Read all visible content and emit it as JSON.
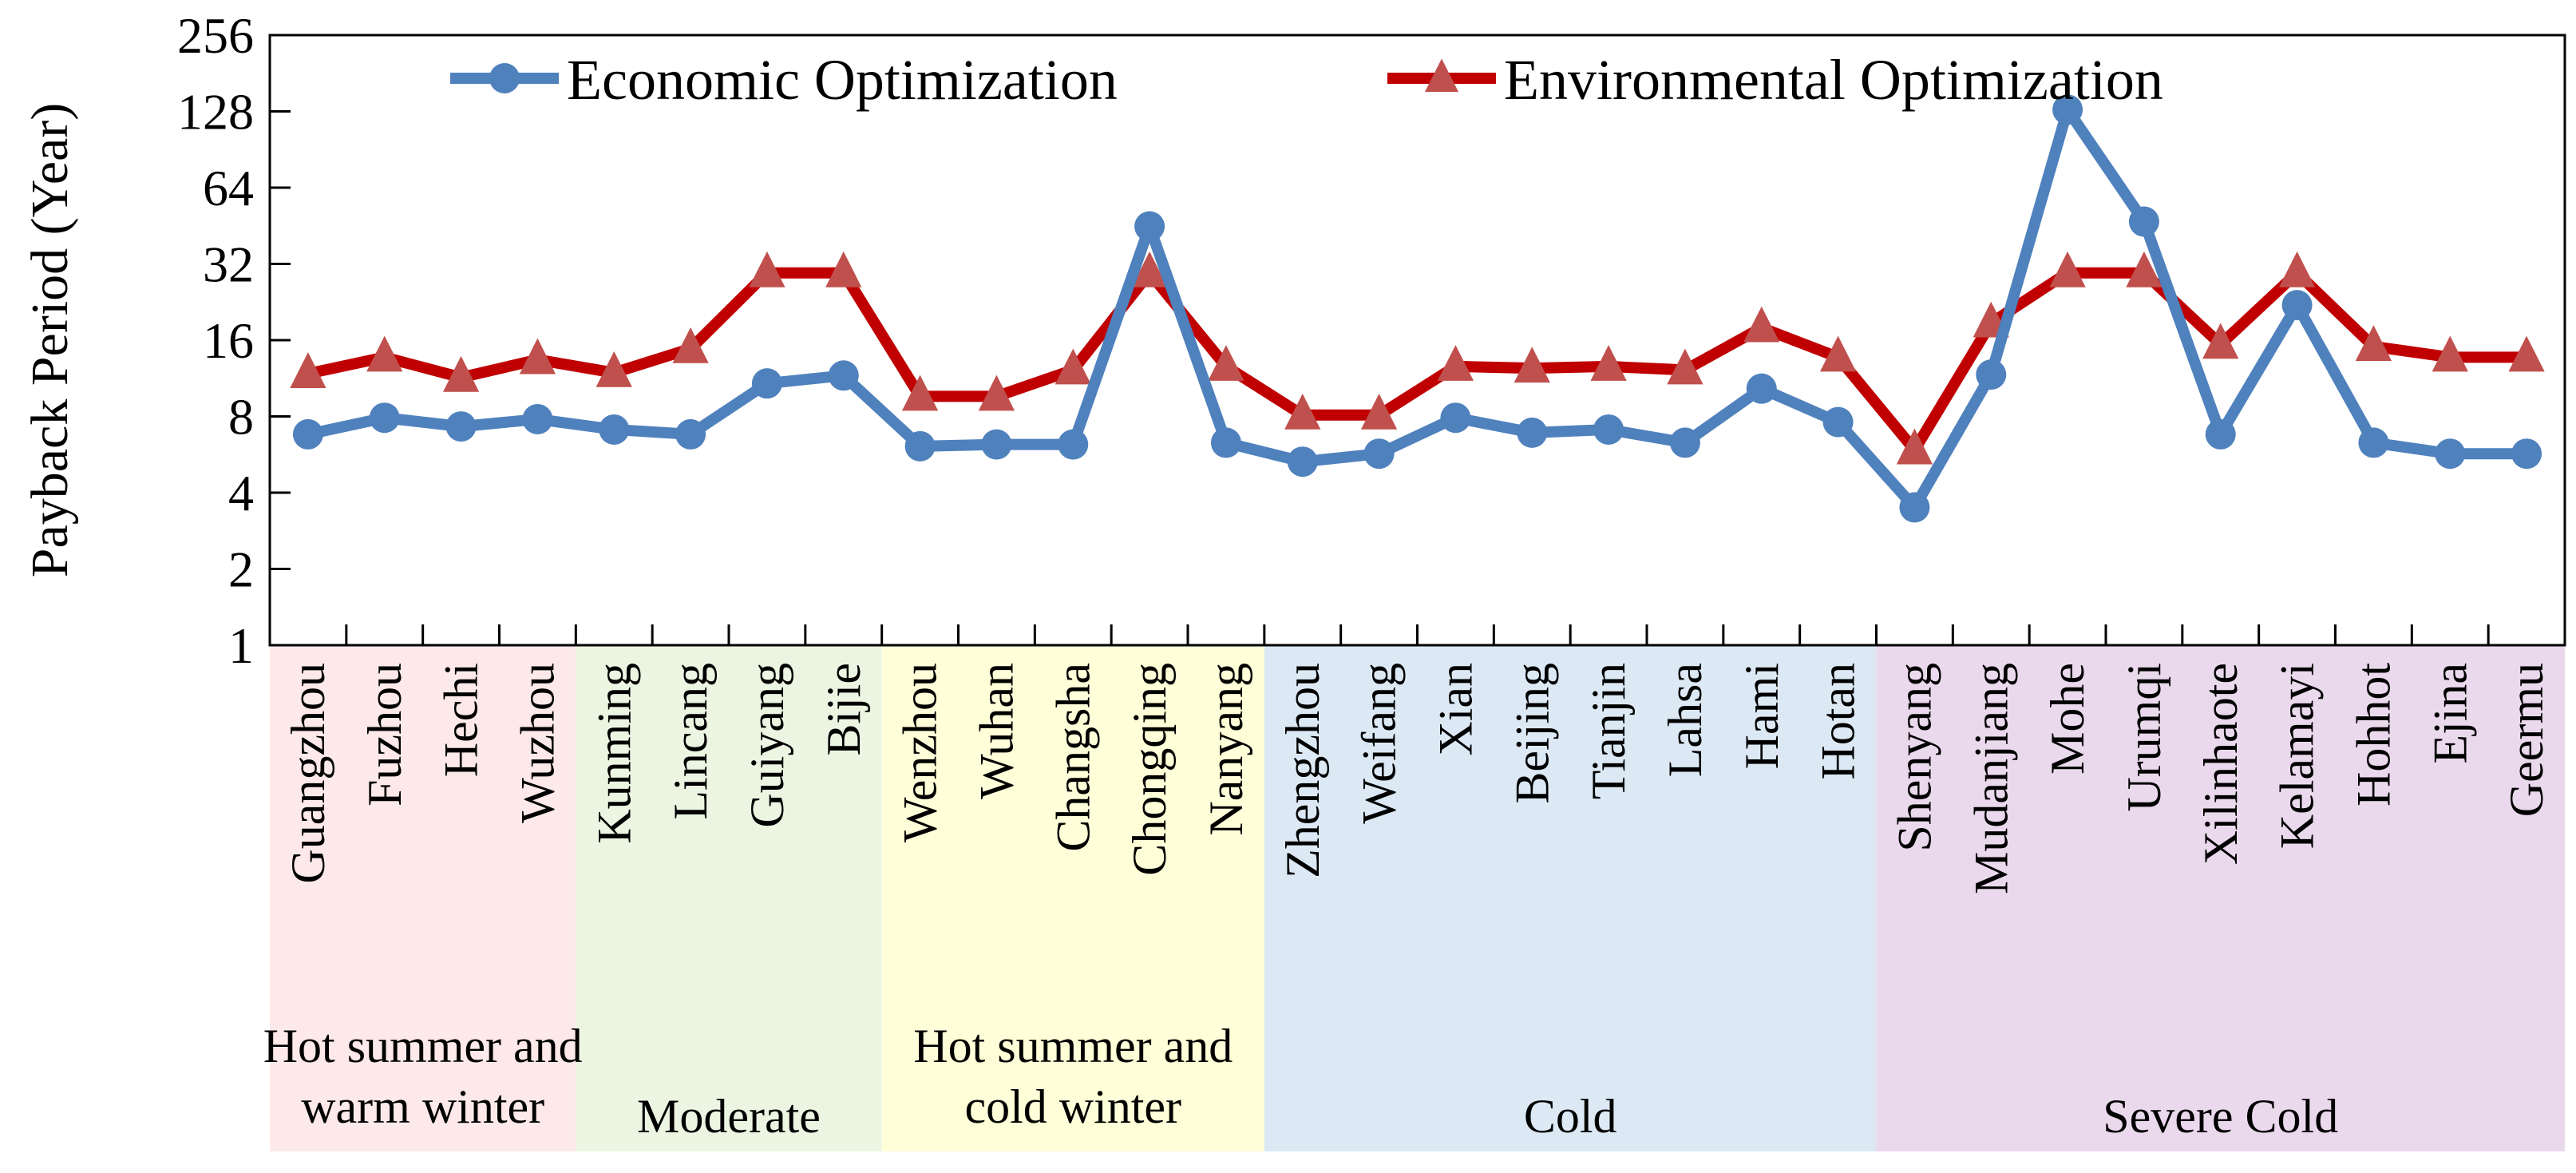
{
  "chart_data": {
    "type": "line",
    "title": "",
    "xlabel": "",
    "ylabel": "Payback Period (Year)",
    "yscale": "log2",
    "ylim": [
      1,
      256
    ],
    "yticks": [
      "1",
      "2",
      "4",
      "8",
      "16",
      "32",
      "64",
      "128",
      "256"
    ],
    "grid": false,
    "legend_position": "top",
    "categories": [
      "Guangzhou",
      "Fuzhou",
      "Hechi",
      "Wuzhou",
      "Kunming",
      "Lincang",
      "Guiyang",
      "Bijie",
      "Wenzhou",
      "Wuhan",
      "Changsha",
      "Chongqing",
      "Nanyang",
      "Zhengzhou",
      "Weifang",
      "Xian",
      "Beijing",
      "Tianjin",
      "Lahsa",
      "Hami",
      "Hotan",
      "Shenyang",
      "Mudanjiang",
      "Mohe",
      "Urumqi",
      "Xilinhaote",
      "Kelamayi",
      "Hohhot",
      "Ejina",
      "Geermu"
    ],
    "series": [
      {
        "name": "Economic Optimization",
        "color": "#4f81bd",
        "marker": "circle",
        "values": [
          6.8,
          7.9,
          7.3,
          7.8,
          7.1,
          6.8,
          10.8,
          11.6,
          6.1,
          6.2,
          6.2,
          45,
          6.3,
          5.3,
          5.7,
          7.9,
          6.9,
          7.1,
          6.3,
          10.3,
          7.6,
          3.5,
          11.7,
          130,
          47,
          6.8,
          22,
          6.3,
          5.7,
          5.7
        ]
      },
      {
        "name": "Environmental Optimization",
        "color": "#c00000",
        "marker": "triangle",
        "values": [
          11.8,
          13.7,
          11.4,
          13.4,
          11.9,
          14.8,
          29.5,
          29.5,
          9.6,
          9.6,
          12.2,
          29.5,
          12.6,
          8.1,
          8.1,
          12.6,
          12.4,
          12.6,
          12.2,
          17.9,
          13.7,
          5.9,
          18.7,
          29.5,
          29.5,
          15.4,
          29.5,
          15.1,
          13.7,
          13.7
        ]
      }
    ],
    "zones": [
      {
        "name": "Hot summer and warm winter",
        "lines": [
          "Hot summer and",
          "warm winter"
        ],
        "start": 0,
        "count": 4,
        "color": "#fde9e9"
      },
      {
        "name": "Moderate",
        "lines": [
          "Moderate"
        ],
        "start": 4,
        "count": 4,
        "color": "#ecf5e2"
      },
      {
        "name": "Hot summer and cold winter",
        "lines": [
          "Hot summer and",
          "cold winter"
        ],
        "start": 8,
        "count": 5,
        "color": "#fefed8"
      },
      {
        "name": "Cold",
        "lines": [
          "Cold"
        ],
        "start": 13,
        "count": 8,
        "color": "#dce9f5"
      },
      {
        "name": "Severe Cold",
        "lines": [
          "Severe Cold"
        ],
        "start": 21,
        "count": 9,
        "color": "#ead9ec"
      }
    ]
  }
}
